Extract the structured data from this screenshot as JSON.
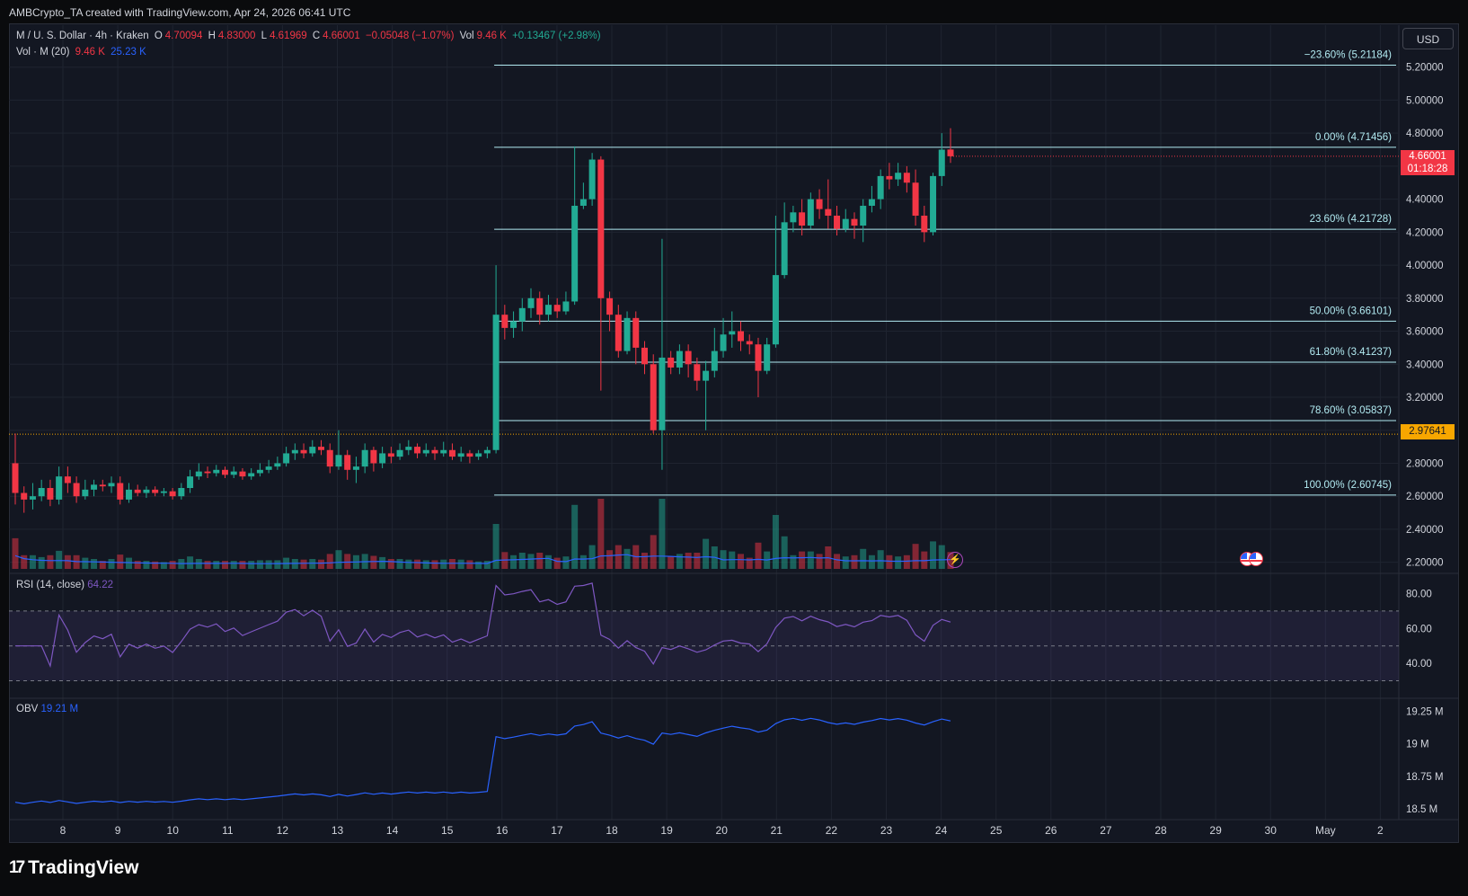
{
  "credit": "AMBCrypto_TA created with TradingView.com, Apr 24, 2026 06:41 UTC",
  "legend": {
    "symbol": "M / U. S. Dollar · 4h · Kraken",
    "o_label": "O",
    "o_value": "4.70094",
    "h_label": "H",
    "h_value": "4.83000",
    "l_label": "L",
    "l_value": "4.61969",
    "c_label": "C",
    "c_value": "4.66001",
    "change": "−0.05048 (−1.07%)",
    "vol_label": "Vol",
    "vol_value": "9.46 K",
    "vol_change": "+0.13467 (+2.98%)",
    "vol_ma_label": "Vol · M (20)",
    "vol_ma_v1": "9.46 K",
    "vol_ma_v2": "25.23 K"
  },
  "currency_button": "USD",
  "last_price": {
    "price": "4.66001",
    "countdown": "01:18:28"
  },
  "ref_price": "2.97641",
  "rsi": {
    "label": "RSI (14, close)",
    "value": "64.22"
  },
  "obv": {
    "label": "OBV",
    "value": "19.21 M"
  },
  "brand": "TradingView",
  "icons": {
    "alert": "lightning-icon",
    "event": "us-flag-icon",
    "logo": "tradingview-logo-icon"
  },
  "colors": {
    "up": "#22ab94",
    "down": "#f23645",
    "fib": "#b2ebf2",
    "rsi": "#7e57c2",
    "obv": "#2962ff",
    "bg": "#131722"
  },
  "chart_data": {
    "type": "candlestick",
    "y_axis_ticks": [
      "5.20000",
      "5.00000",
      "4.80000",
      "4.60000",
      "4.40000",
      "4.20000",
      "4.00000",
      "3.80000",
      "3.60000",
      "3.40000",
      "3.20000",
      "3.00000",
      "2.80000",
      "2.60000",
      "2.40000",
      "2.20000"
    ],
    "ylim": [
      2.16,
      5.28
    ],
    "x_ticks": [
      "8",
      "9",
      "10",
      "11",
      "12",
      "13",
      "14",
      "15",
      "16",
      "17",
      "18",
      "19",
      "20",
      "21",
      "22",
      "23",
      "24",
      "25",
      "26",
      "27",
      "28",
      "29",
      "30",
      "May",
      "2"
    ],
    "fib_levels": [
      {
        "label": "−23.60% (5.21184)",
        "price": 5.21184
      },
      {
        "label": "0.00% (4.71456)",
        "price": 4.71456
      },
      {
        "label": "23.60% (4.21728)",
        "price": 4.21728
      },
      {
        "label": "50.00% (3.66101)",
        "price": 3.66101
      },
      {
        "label": "61.80% (3.41237)",
        "price": 3.41237
      },
      {
        "label": "78.60% (3.05837)",
        "price": 3.05837
      },
      {
        "label": "100.00% (2.60745)",
        "price": 2.60745
      }
    ],
    "candles": [
      [
        2.8,
        2.62,
        2.98,
        2.55
      ],
      [
        2.62,
        2.58,
        2.66,
        2.5
      ],
      [
        2.58,
        2.6,
        2.68,
        2.52
      ],
      [
        2.6,
        2.65,
        2.7,
        2.57
      ],
      [
        2.65,
        2.58,
        2.7,
        2.54
      ],
      [
        2.58,
        2.72,
        2.78,
        2.55
      ],
      [
        2.72,
        2.68,
        2.78,
        2.62
      ],
      [
        2.68,
        2.6,
        2.72,
        2.56
      ],
      [
        2.6,
        2.64,
        2.7,
        2.58
      ],
      [
        2.64,
        2.67,
        2.7,
        2.6
      ],
      [
        2.67,
        2.66,
        2.7,
        2.63
      ],
      [
        2.66,
        2.68,
        2.72,
        2.62
      ],
      [
        2.68,
        2.58,
        2.72,
        2.55
      ],
      [
        2.58,
        2.64,
        2.68,
        2.56
      ],
      [
        2.64,
        2.62,
        2.67,
        2.6
      ],
      [
        2.62,
        2.64,
        2.66,
        2.59
      ],
      [
        2.64,
        2.62,
        2.66,
        2.6
      ],
      [
        2.62,
        2.63,
        2.65,
        2.6
      ],
      [
        2.63,
        2.6,
        2.65,
        2.58
      ],
      [
        2.6,
        2.65,
        2.68,
        2.58
      ],
      [
        2.65,
        2.72,
        2.76,
        2.62
      ],
      [
        2.72,
        2.75,
        2.8,
        2.7
      ],
      [
        2.75,
        2.74,
        2.78,
        2.71
      ],
      [
        2.74,
        2.76,
        2.79,
        2.72
      ],
      [
        2.76,
        2.73,
        2.78,
        2.71
      ],
      [
        2.73,
        2.75,
        2.78,
        2.71
      ],
      [
        2.75,
        2.72,
        2.77,
        2.7
      ],
      [
        2.72,
        2.74,
        2.77,
        2.7
      ],
      [
        2.74,
        2.76,
        2.8,
        2.72
      ],
      [
        2.76,
        2.78,
        2.82,
        2.74
      ],
      [
        2.78,
        2.8,
        2.84,
        2.76
      ],
      [
        2.8,
        2.86,
        2.9,
        2.78
      ],
      [
        2.86,
        2.88,
        2.92,
        2.82
      ],
      [
        2.88,
        2.86,
        2.92,
        2.83
      ],
      [
        2.86,
        2.9,
        2.94,
        2.84
      ],
      [
        2.9,
        2.88,
        2.94,
        2.85
      ],
      [
        2.88,
        2.78,
        2.92,
        2.74
      ],
      [
        2.78,
        2.85,
        3.0,
        2.76
      ],
      [
        2.85,
        2.76,
        2.88,
        2.7
      ],
      [
        2.76,
        2.78,
        2.84,
        2.68
      ],
      [
        2.78,
        2.88,
        2.92,
        2.74
      ],
      [
        2.88,
        2.8,
        2.9,
        2.75
      ],
      [
        2.8,
        2.86,
        2.9,
        2.77
      ],
      [
        2.86,
        2.84,
        2.9,
        2.8
      ],
      [
        2.84,
        2.88,
        2.92,
        2.82
      ],
      [
        2.88,
        2.9,
        2.94,
        2.85
      ],
      [
        2.9,
        2.86,
        2.92,
        2.83
      ],
      [
        2.86,
        2.88,
        2.92,
        2.84
      ],
      [
        2.88,
        2.86,
        2.9,
        2.82
      ],
      [
        2.86,
        2.88,
        2.93,
        2.84
      ],
      [
        2.88,
        2.84,
        2.92,
        2.82
      ],
      [
        2.84,
        2.86,
        2.9,
        2.81
      ],
      [
        2.86,
        2.84,
        2.88,
        2.8
      ],
      [
        2.84,
        2.86,
        2.88,
        2.82
      ],
      [
        2.86,
        2.88,
        2.9,
        2.83
      ],
      [
        2.88,
        3.7,
        4.0,
        2.86
      ],
      [
        3.7,
        3.62,
        3.76,
        3.55
      ],
      [
        3.62,
        3.66,
        3.72,
        3.56
      ],
      [
        3.66,
        3.74,
        3.8,
        3.6
      ],
      [
        3.74,
        3.8,
        3.86,
        3.68
      ],
      [
        3.8,
        3.7,
        3.84,
        3.64
      ],
      [
        3.7,
        3.76,
        3.82,
        3.66
      ],
      [
        3.76,
        3.72,
        3.8,
        3.68
      ],
      [
        3.72,
        3.78,
        3.84,
        3.7
      ],
      [
        3.78,
        4.36,
        4.72,
        3.76
      ],
      [
        4.36,
        4.4,
        4.5,
        4.34
      ],
      [
        4.4,
        4.64,
        4.68,
        4.36
      ],
      [
        4.64,
        3.8,
        4.66,
        3.24
      ],
      [
        3.8,
        3.7,
        3.84,
        3.6
      ],
      [
        3.7,
        3.48,
        3.76,
        3.44
      ],
      [
        3.48,
        3.68,
        3.72,
        3.46
      ],
      [
        3.68,
        3.5,
        3.72,
        3.4
      ],
      [
        3.5,
        3.4,
        3.54,
        3.34
      ],
      [
        3.4,
        3.0,
        3.46,
        2.98
      ],
      [
        3.0,
        3.44,
        4.16,
        2.76
      ],
      [
        3.44,
        3.38,
        3.48,
        3.34
      ],
      [
        3.38,
        3.48,
        3.52,
        3.34
      ],
      [
        3.48,
        3.4,
        3.52,
        3.32
      ],
      [
        3.4,
        3.3,
        3.44,
        3.24
      ],
      [
        3.3,
        3.36,
        3.42,
        3.0
      ],
      [
        3.36,
        3.48,
        3.62,
        3.32
      ],
      [
        3.48,
        3.58,
        3.68,
        3.44
      ],
      [
        3.58,
        3.6,
        3.72,
        3.5
      ],
      [
        3.6,
        3.54,
        3.66,
        3.48
      ],
      [
        3.54,
        3.52,
        3.58,
        3.46
      ],
      [
        3.52,
        3.36,
        3.56,
        3.2
      ],
      [
        3.36,
        3.52,
        3.56,
        3.34
      ],
      [
        3.52,
        3.94,
        4.3,
        3.5
      ],
      [
        3.94,
        4.26,
        4.38,
        3.92
      ],
      [
        4.26,
        4.32,
        4.36,
        4.2
      ],
      [
        4.32,
        4.24,
        4.4,
        4.18
      ],
      [
        4.24,
        4.4,
        4.44,
        4.22
      ],
      [
        4.4,
        4.34,
        4.46,
        4.28
      ],
      [
        4.34,
        4.3,
        4.52,
        4.22
      ],
      [
        4.3,
        4.22,
        4.36,
        4.18
      ],
      [
        4.22,
        4.28,
        4.34,
        4.2
      ],
      [
        4.28,
        4.24,
        4.32,
        4.16
      ],
      [
        4.24,
        4.36,
        4.4,
        4.14
      ],
      [
        4.36,
        4.4,
        4.48,
        4.32
      ],
      [
        4.4,
        4.54,
        4.58,
        4.34
      ],
      [
        4.54,
        4.52,
        4.62,
        4.46
      ],
      [
        4.52,
        4.56,
        4.62,
        4.48
      ],
      [
        4.56,
        4.5,
        4.6,
        4.44
      ],
      [
        4.5,
        4.3,
        4.58,
        4.24
      ],
      [
        4.3,
        4.2,
        4.36,
        4.14
      ],
      [
        4.2,
        4.54,
        4.56,
        4.18
      ],
      [
        4.54,
        4.7,
        4.8,
        4.48
      ],
      [
        4.70094,
        4.66001,
        4.83,
        4.61969
      ]
    ],
    "volume_up": [
      0,
      1,
      0,
      0,
      0,
      1,
      0,
      0,
      1,
      0
    ],
    "rsi_levels": {
      "upper": 70,
      "middle": 50,
      "lower": 30
    },
    "rsi_ticks": [
      "80.00",
      "60.00",
      "40.00"
    ],
    "rsi_ylim": [
      22,
      88
    ],
    "obv_ticks": [
      "19.25 M",
      "19 M",
      "18.75 M",
      "18.5 M"
    ],
    "obv_ylim": [
      18.43,
      19.31
    ]
  }
}
